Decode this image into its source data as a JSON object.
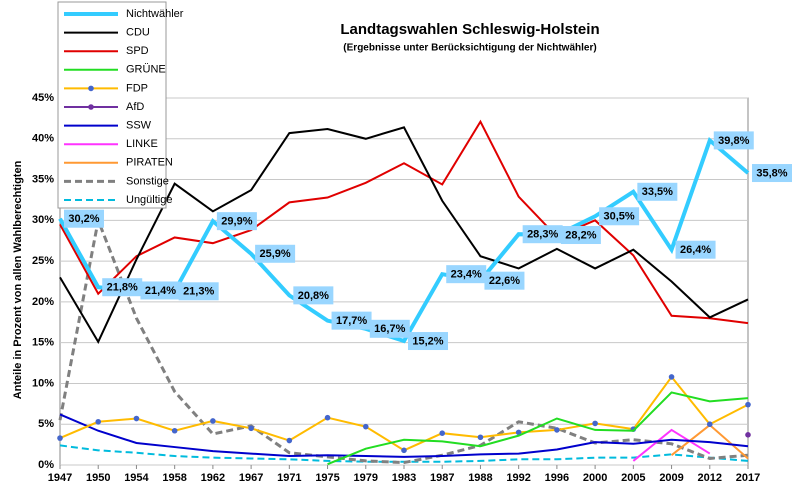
{
  "chart_data": {
    "type": "line",
    "title": "Landtagswahlen Schleswig-Holstein",
    "subtitle": "(Ergebnisse  unter Berücksichtigung  der Nichtwähler)",
    "y_label": "Anteile  in Prozent von allen  Wahlberechtigten",
    "categories": [
      "1947",
      "1950",
      "1954",
      "1958",
      "1962",
      "1967",
      "1971",
      "1975",
      "1979",
      "1983",
      "1987",
      "1988",
      "1992",
      "1996",
      "2000",
      "2005",
      "2009",
      "2012",
      "2017"
    ],
    "ylim": [
      0,
      45
    ],
    "yticks": [
      {
        "value": 0,
        "label": "0%"
      },
      {
        "value": 5,
        "label": "5%"
      },
      {
        "value": 10,
        "label": "10%"
      },
      {
        "value": 15,
        "label": "15%"
      },
      {
        "value": 20,
        "label": "20%"
      },
      {
        "value": 25,
        "label": "25%"
      },
      {
        "value": 30,
        "label": "30%"
      },
      {
        "value": 35,
        "label": "35%"
      },
      {
        "value": 40,
        "label": "40%"
      },
      {
        "value": 45,
        "label": "45%"
      }
    ],
    "grid": true,
    "legend": "top-left",
    "series": [
      {
        "name": "Nichtwähler",
        "color": "#33ccff",
        "width": 4,
        "values": [
          30.2,
          21.8,
          21.4,
          21.3,
          29.9,
          25.9,
          20.8,
          17.7,
          16.7,
          15.2,
          23.4,
          22.6,
          28.3,
          28.2,
          30.5,
          33.5,
          26.4,
          39.8,
          35.8
        ],
        "value_labels": [
          "30,2%",
          "21,8%",
          "21,4%",
          "21,3%",
          "29,9%",
          "25,9%",
          "20,8%",
          "17,7%",
          "16,7%",
          "15,2%",
          "23,4%",
          "22,6%",
          "28,3%",
          "28,2%",
          "30,5%",
          "33,5%",
          "26,4%",
          "39,8%",
          "35,8%"
        ]
      },
      {
        "name": "CDU",
        "color": "#000000",
        "values": [
          23.0,
          15.1,
          25.2,
          34.5,
          31.1,
          33.7,
          40.7,
          41.2,
          40.0,
          41.4,
          32.4,
          25.6,
          24.1,
          26.5,
          24.1,
          26.4,
          22.5,
          18.1,
          20.3
        ]
      },
      {
        "name": "SPD",
        "color": "#e00000",
        "values": [
          29.5,
          21.0,
          25.6,
          27.9,
          27.2,
          28.8,
          32.2,
          32.8,
          34.6,
          37.0,
          34.4,
          42.1,
          32.9,
          28.0,
          30.0,
          25.7,
          18.3,
          18.0,
          17.4
        ]
      },
      {
        "name": "GRÜNE",
        "color": "#22dd22",
        "values": [
          null,
          null,
          null,
          null,
          null,
          null,
          null,
          0.1,
          2.0,
          3.1,
          2.9,
          2.3,
          3.6,
          5.7,
          4.3,
          4.2,
          8.9,
          7.8,
          8.2
        ]
      },
      {
        "name": "FDP",
        "color": "#ffbb00",
        "marker": "#4466cc",
        "values": [
          3.3,
          5.3,
          5.7,
          4.2,
          5.4,
          4.5,
          3.0,
          5.8,
          4.7,
          1.8,
          3.9,
          3.4,
          4.0,
          4.3,
          5.1,
          4.4,
          10.8,
          5.0,
          7.4
        ]
      },
      {
        "name": "AfD",
        "color": "#7030a0",
        "marker": "#7030a0",
        "values": [
          null,
          null,
          null,
          null,
          null,
          null,
          null,
          null,
          null,
          null,
          null,
          null,
          null,
          null,
          null,
          null,
          null,
          null,
          3.7
        ]
      },
      {
        "name": "SSW",
        "color": "#0000cc",
        "values": [
          6.2,
          4.2,
          2.7,
          2.2,
          1.7,
          1.4,
          1.1,
          1.2,
          1.1,
          1.0,
          1.1,
          1.3,
          1.4,
          1.9,
          2.8,
          2.6,
          3.1,
          2.8,
          2.3
        ]
      },
      {
        "name": "LINKE",
        "color": "#ff33ff",
        "values": [
          null,
          null,
          null,
          null,
          null,
          null,
          null,
          null,
          null,
          null,
          null,
          null,
          null,
          null,
          null,
          0.5,
          4.3,
          1.4,
          null
        ]
      },
      {
        "name": "PIRATEN",
        "color": "#ff9933",
        "values": [
          null,
          null,
          null,
          null,
          null,
          null,
          null,
          null,
          null,
          null,
          null,
          null,
          null,
          null,
          null,
          null,
          1.2,
          4.9,
          0.8
        ]
      },
      {
        "name": "Sonstige",
        "color": "#808080",
        "dash": true,
        "width": 3,
        "values": [
          5.5,
          30.0,
          18.0,
          9.0,
          3.8,
          4.8,
          1.5,
          1.0,
          0.5,
          0.3,
          1.2,
          2.4,
          5.3,
          4.5,
          2.7,
          3.1,
          2.6,
          0.8,
          1.2
        ]
      },
      {
        "name": "Ungültige",
        "color": "#00bbdd",
        "dash": true,
        "values": [
          2.4,
          1.8,
          1.5,
          1.1,
          0.9,
          0.8,
          0.7,
          0.5,
          0.4,
          0.4,
          0.4,
          0.5,
          0.7,
          0.7,
          0.9,
          0.9,
          1.3,
          0.9,
          0.5
        ]
      }
    ]
  }
}
